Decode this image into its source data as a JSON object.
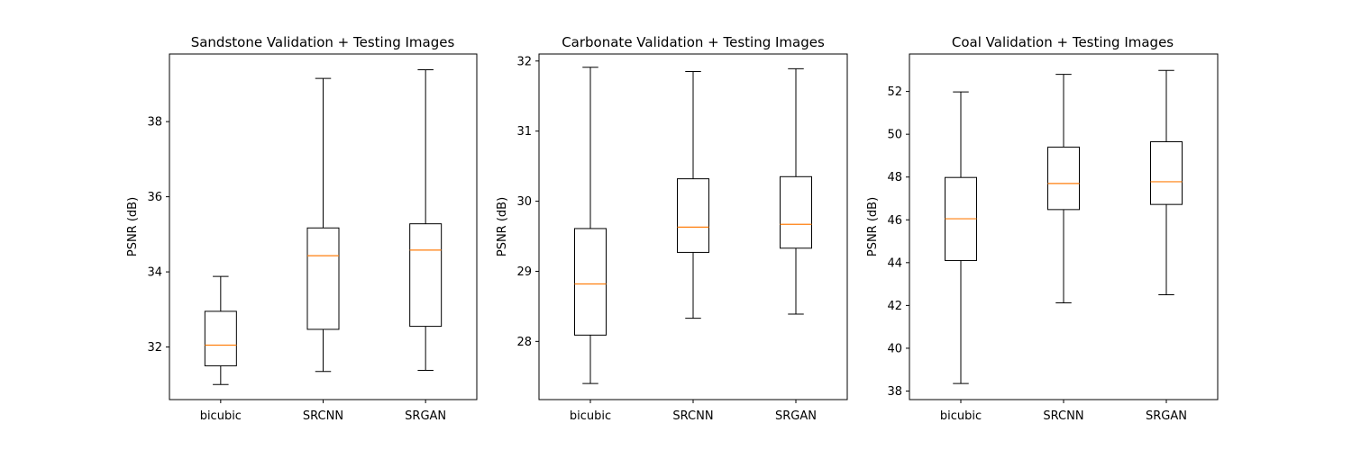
{
  "chart_data": [
    {
      "type": "box",
      "title": "Sandstone Validation + Testing Images",
      "xlabel": "",
      "ylabel": "PSNR (dB)",
      "ylim": [
        30.6,
        39.8
      ],
      "yticks": [
        32,
        34,
        36,
        38
      ],
      "categories": [
        "bicubic",
        "SRCNN",
        "SRGAN"
      ],
      "boxes": [
        {
          "whislo": 31.0,
          "q1": 31.5,
          "med": 32.05,
          "q3": 32.95,
          "whishi": 33.88
        },
        {
          "whislo": 31.35,
          "q1": 32.47,
          "med": 34.43,
          "q3": 35.17,
          "whishi": 39.15
        },
        {
          "whislo": 31.38,
          "q1": 32.55,
          "med": 34.58,
          "q3": 35.28,
          "whishi": 39.38
        }
      ],
      "grid": false
    },
    {
      "type": "box",
      "title": "Carbonate Validation + Testing Images",
      "xlabel": "",
      "ylabel": "PSNR (dB)",
      "ylim": [
        27.17,
        32.1
      ],
      "yticks": [
        28,
        29,
        30,
        31,
        32
      ],
      "categories": [
        "bicubic",
        "SRCNN",
        "SRGAN"
      ],
      "boxes": [
        {
          "whislo": 27.4,
          "q1": 28.09,
          "med": 28.82,
          "q3": 29.61,
          "whishi": 31.91
        },
        {
          "whislo": 28.33,
          "q1": 29.27,
          "med": 29.63,
          "q3": 30.32,
          "whishi": 31.85
        },
        {
          "whislo": 28.39,
          "q1": 29.33,
          "med": 29.67,
          "q3": 30.35,
          "whishi": 31.89
        }
      ],
      "grid": false
    },
    {
      "type": "box",
      "title": "Coal Validation + Testing Images",
      "xlabel": "",
      "ylabel": "PSNR (dB)",
      "ylim": [
        37.6,
        53.75
      ],
      "yticks": [
        38,
        40,
        42,
        44,
        46,
        48,
        50,
        52
      ],
      "categories": [
        "bicubic",
        "SRCNN",
        "SRGAN"
      ],
      "boxes": [
        {
          "whislo": 38.35,
          "q1": 44.1,
          "med": 46.05,
          "q3": 47.98,
          "whishi": 51.98
        },
        {
          "whislo": 42.12,
          "q1": 46.48,
          "med": 47.7,
          "q3": 49.4,
          "whishi": 52.8
        },
        {
          "whislo": 42.5,
          "q1": 46.72,
          "med": 47.78,
          "q3": 49.65,
          "whishi": 52.98
        }
      ],
      "grid": false
    }
  ],
  "colors": {
    "box": "#000000",
    "median": "#ff7f0e",
    "background": "#ffffff"
  }
}
